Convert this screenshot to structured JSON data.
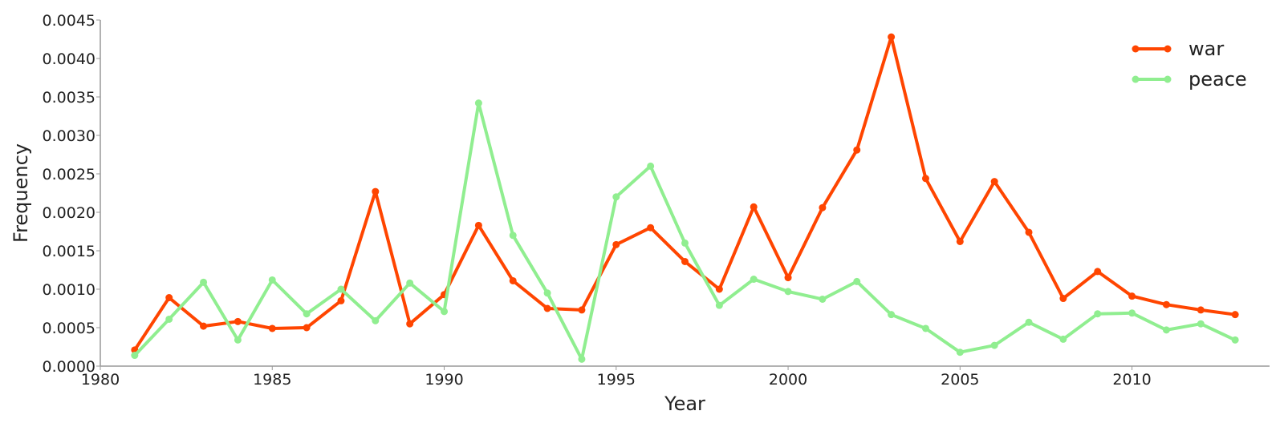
{
  "chart_data": {
    "type": "line",
    "xlabel": "Year",
    "ylabel": "Frequency",
    "xlim": [
      1980,
      2014
    ],
    "ylim": [
      0,
      0.0045
    ],
    "x_ticks": [
      "1980",
      "1985",
      "1990",
      "1995",
      "2000",
      "2005",
      "2010"
    ],
    "y_ticks": [
      "0.0000",
      "0.0005",
      "0.0010",
      "0.0015",
      "0.0020",
      "0.0025",
      "0.0030",
      "0.0035",
      "0.0040",
      "0.0045"
    ],
    "grid": false,
    "legend_position": "top-right",
    "x": [
      1981,
      1982,
      1983,
      1984,
      1985,
      1986,
      1987,
      1988,
      1989,
      1990,
      1991,
      1992,
      1993,
      1994,
      1995,
      1996,
      1997,
      1998,
      1999,
      2000,
      2001,
      2002,
      2003,
      2004,
      2005,
      2006,
      2007,
      2008,
      2009,
      2010,
      2011,
      2012,
      2013
    ],
    "series": [
      {
        "name": "war",
        "color": "#ff4500",
        "values": [
          0.00021,
          0.00089,
          0.00052,
          0.00058,
          0.00049,
          0.0005,
          0.00085,
          0.00227,
          0.00055,
          0.00093,
          0.00183,
          0.00111,
          0.00075,
          0.00073,
          0.00158,
          0.0018,
          0.00136,
          0.001,
          0.00207,
          0.00115,
          0.00206,
          0.00281,
          0.00428,
          0.00244,
          0.00162,
          0.0024,
          0.00174,
          0.00088,
          0.00123,
          0.00091,
          0.0008,
          0.00073,
          0.00067
        ]
      },
      {
        "name": "peace",
        "color": "#90ee90",
        "values": [
          0.00014,
          0.00061,
          0.00109,
          0.00034,
          0.00112,
          0.00068,
          0.001,
          0.00059,
          0.00108,
          0.00071,
          0.00342,
          0.0017,
          0.00095,
          9e-05,
          0.0022,
          0.0026,
          0.0016,
          0.00079,
          0.00113,
          0.00097,
          0.00087,
          0.0011,
          0.00067,
          0.00049,
          0.00018,
          0.00027,
          0.00057,
          0.00035,
          0.00068,
          0.00069,
          0.00047,
          0.00055,
          0.00034
        ]
      }
    ]
  }
}
